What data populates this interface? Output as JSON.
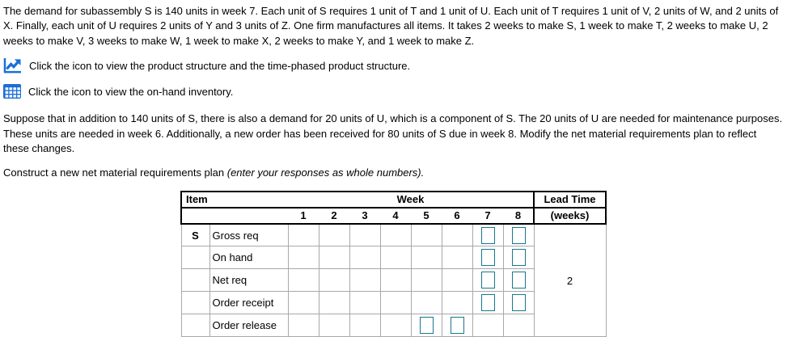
{
  "problem": {
    "intro": "The demand for subassembly S is 140 units in week 7. Each unit of S requires 1 unit of T and 1 unit of U. Each unit of T requires 1 unit of V, 2 units of W, and 2 units of X. Finally, each unit of U requires 2 units of Y and 3 units of Z. One firm manufactures all items. It takes 2 weeks to make S, 1 week to make T, 2 weeks to make U, 2 weeks to make V, 3 weeks to make W, 1 week to make X, 2 weeks to make Y, and 1 week to make Z.",
    "scenario": "Suppose that in addition to 140 units of S, there is also a demand for 20 units of U, which is a component of S. The 20 units of U are needed for maintenance purposes. These units are needed in week 6. Additionally, a new order has been received for 80 units of S due in week 8. Modify the net material requirements plan to reflect these changes.",
    "instruction": "Construct a new net material requirements plan ",
    "instruction_note": "(enter your responses as whole numbers)."
  },
  "links": [
    {
      "icon": "line-chart-icon",
      "text": "Click the icon to view the product structure and the time-phased product structure."
    },
    {
      "icon": "inventory-grid-icon",
      "text": "Click the icon to view the on-hand inventory."
    }
  ],
  "table": {
    "headers": {
      "item": "Item",
      "week": "Week",
      "lead_time": "Lead Time",
      "lead_time_unit": "(weeks)"
    },
    "week_numbers": [
      "1",
      "2",
      "3",
      "4",
      "5",
      "6",
      "7",
      "8"
    ],
    "item_label": "S",
    "lead_time_value": "2",
    "rows": [
      {
        "key": "gross-req",
        "label": "Gross req",
        "inputs": [
          7,
          8
        ]
      },
      {
        "key": "on-hand",
        "label": "On hand",
        "inputs": [
          7,
          8
        ]
      },
      {
        "key": "net-req",
        "label": "Net req",
        "inputs": [
          7,
          8
        ]
      },
      {
        "key": "order-receipt",
        "label": "Order receipt",
        "inputs": [
          7,
          8
        ]
      },
      {
        "key": "order-release",
        "label": "Order release",
        "inputs": [
          5,
          6
        ]
      }
    ]
  },
  "colors": {
    "icon_blue": "#1a6fd8",
    "input_border": "#17798d",
    "grid_line": "#a9a9a9",
    "header_line": "#000000"
  }
}
